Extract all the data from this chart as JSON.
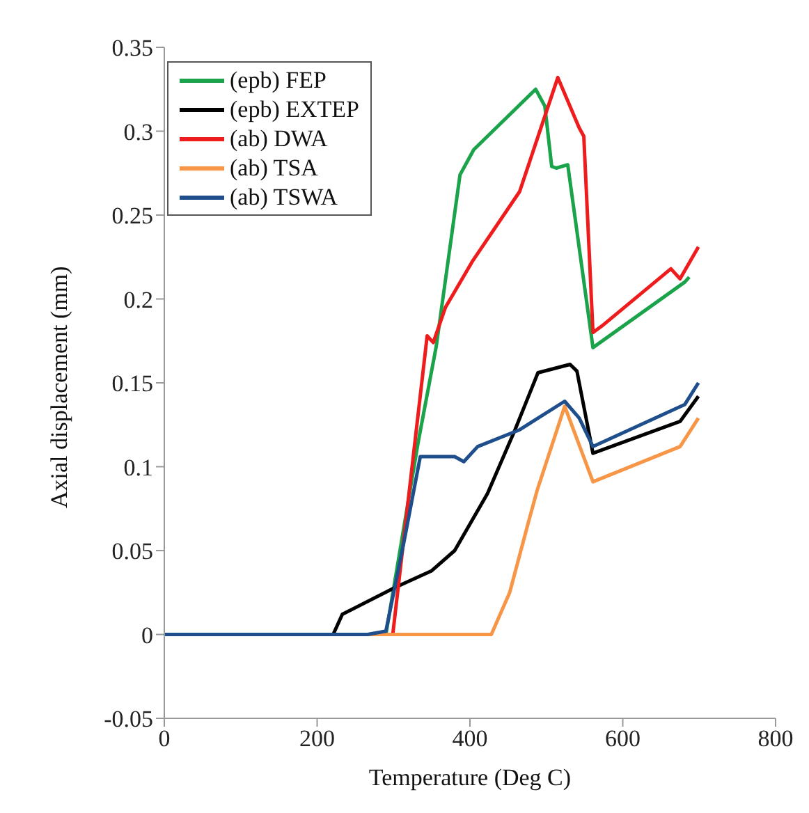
{
  "chart_data": {
    "type": "line",
    "xlabel": "Temperature (Deg C)",
    "ylabel": "Axial displacement (mm)",
    "xlim": [
      0,
      800
    ],
    "xticks": [
      0,
      200,
      400,
      600,
      800
    ],
    "ylim": [
      -0.05,
      0.35
    ],
    "yticks": [
      -0.05,
      0,
      0.05,
      0.1,
      0.15,
      0.2,
      0.25,
      0.3,
      0.35
    ],
    "grid": false,
    "legend": "top left",
    "marker": "none",
    "series": [
      {
        "name": "(epb) FEP",
        "color": "#1aa34a",
        "x": [
          0,
          290,
          332,
          356,
          387,
          405,
          486,
          498,
          507,
          513,
          528,
          561,
          681,
          687
        ],
        "values": [
          0,
          0,
          0.114,
          0.172,
          0.274,
          0.289,
          0.325,
          0.315,
          0.279,
          0.278,
          0.28,
          0.171,
          0.21,
          0.213
        ]
      },
      {
        "name": "(epb) EXTEP",
        "color": "#000000",
        "x": [
          0,
          221,
          233,
          302,
          350,
          380,
          423,
          459,
          489,
          531,
          540,
          561,
          675,
          699
        ],
        "values": [
          0,
          0,
          0.012,
          0.028,
          0.038,
          0.05,
          0.084,
          0.122,
          0.156,
          0.161,
          0.157,
          0.108,
          0.127,
          0.142
        ]
      },
      {
        "name": "(ab) DWA",
        "color": "#ee1c1c",
        "x": [
          0,
          299,
          344,
          352,
          368,
          404,
          465,
          515,
          543,
          549,
          561,
          573,
          663,
          675,
          699
        ],
        "values": [
          0,
          0,
          0.178,
          0.174,
          0.195,
          0.223,
          0.264,
          0.332,
          0.302,
          0.297,
          0.18,
          0.184,
          0.218,
          0.212,
          0.231
        ]
      },
      {
        "name": "(ab) TSA",
        "color": "#f79646",
        "x": [
          0,
          428,
          452,
          476,
          488,
          524,
          561,
          675,
          699
        ],
        "values": [
          0,
          0,
          0.025,
          0.066,
          0.086,
          0.136,
          0.091,
          0.112,
          0.129
        ]
      },
      {
        "name": "(ab) TSWA",
        "color": "#1f4e8c",
        "x": [
          0,
          266,
          290,
          314,
          335,
          380,
          392,
          410,
          465,
          524,
          543,
          561,
          681,
          699
        ],
        "values": [
          0,
          0,
          0.002,
          0.056,
          0.106,
          0.106,
          0.103,
          0.112,
          0.122,
          0.139,
          0.129,
          0.112,
          0.137,
          0.15
        ]
      }
    ]
  }
}
